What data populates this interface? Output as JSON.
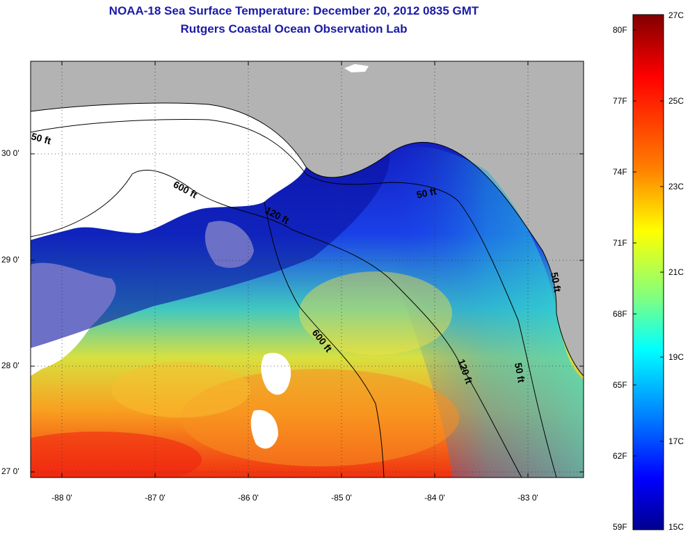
{
  "title": {
    "line1": "NOAA-18 Sea Surface Temperature:  December 20, 2012 0835 GMT",
    "line2": "Rutgers Coastal Ocean Observation Lab"
  },
  "colors": {
    "land": "#b3b3b3",
    "cloud": "#ffffff",
    "title": "#1a1aa8"
  },
  "axes": {
    "lat_labels": [
      "30 0'",
      "29 0'",
      "28 0'",
      "27 0'"
    ],
    "lon_labels": [
      "-88 0'",
      "-87 0'",
      "-86 0'",
      "-85 0'",
      "-84 0'",
      "-83 0'"
    ]
  },
  "contours": {
    "labels": [
      "50 ft",
      "600 ft",
      "120 ft",
      "50 ft",
      "600 ft",
      "120 ft",
      "50 ft",
      "50 ft"
    ]
  },
  "colorbar": {
    "fahrenheit": [
      "80F",
      "77F",
      "74F",
      "71F",
      "68F",
      "65F",
      "62F",
      "59F"
    ],
    "celsius": [
      "27C",
      "25C",
      "23C",
      "21C",
      "19C",
      "17C",
      "15C"
    ]
  }
}
